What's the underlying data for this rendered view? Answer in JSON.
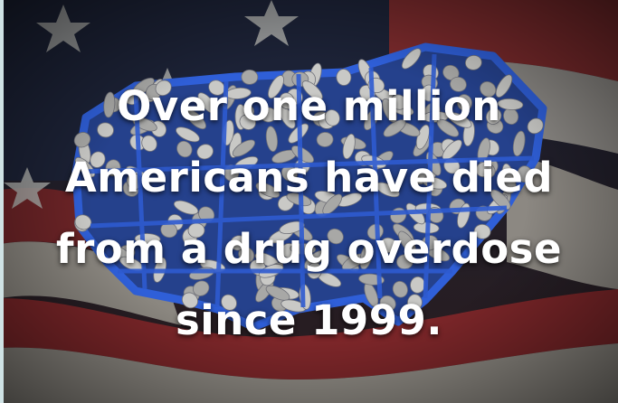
{
  "headline": {
    "lines": [
      "Over one million",
      "Americans have died",
      "from a drug overdose",
      "since 1999."
    ]
  }
}
